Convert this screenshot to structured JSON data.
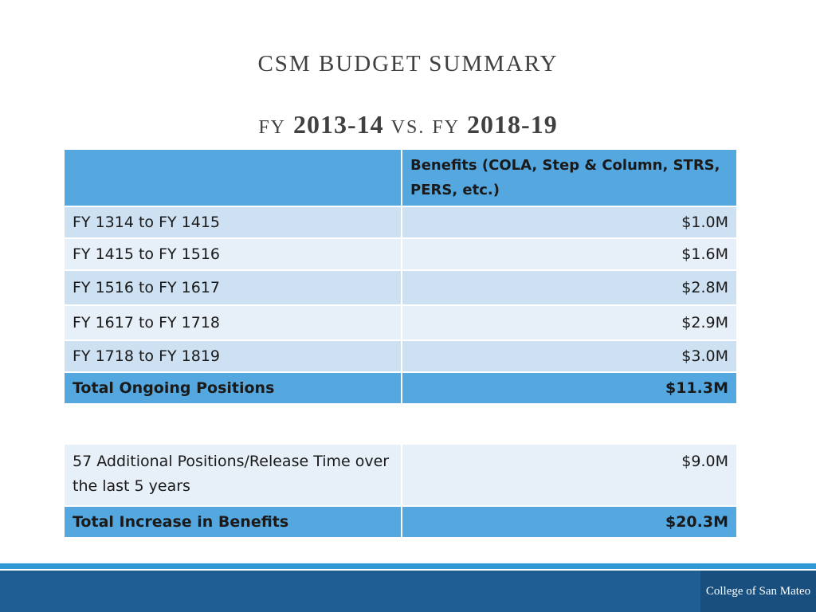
{
  "title": {
    "line1": "CSM BUDGET SUMMARY",
    "line2": {
      "prefix": "FY",
      "year1": "2013-14",
      "vs": "VS.",
      "mid": "FY",
      "year2": "2018-19"
    }
  },
  "table": {
    "header": {
      "blank": "",
      "col2": "Benefits (COLA, Step & Column, STRS, PERS, etc.)"
    },
    "rows": [
      {
        "label": "FY 1314 to FY 1415",
        "value": "$1.0M"
      },
      {
        "label": "FY 1415 to FY 1516",
        "value": "$1.6M"
      },
      {
        "label": "FY 1516 to FY 1617",
        "value": "$2.8M"
      },
      {
        "label": "FY 1617 to FY 1718",
        "value": "$2.9M"
      },
      {
        "label": "FY 1718 to FY 1819",
        "value": "$3.0M"
      }
    ],
    "total": {
      "label": "Total Ongoing Positions",
      "value": "$11.3M"
    }
  },
  "extra_table": {
    "row": {
      "label": "57 Additional Positions/Release Time over the last 5 years",
      "value": "$9.0M"
    },
    "total": {
      "label": "Total Increase in Benefits",
      "value": "$20.3M"
    }
  },
  "footer": {
    "logo_text": "College of San Mateo"
  },
  "colors": {
    "header_blue": "#55a7e0",
    "row_light": "#cde1f2",
    "row_pale": "#e7eff8",
    "footer_dark": "#1f5e93",
    "footer_accent": "#2f98d5"
  }
}
